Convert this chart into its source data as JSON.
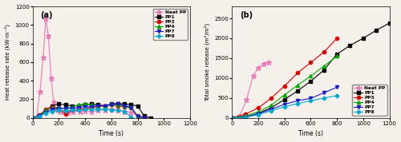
{
  "panel_a": {
    "title": "(a)",
    "xlabel": "Time (s)",
    "ylabel": "Heat release rate (kW·m⁻²)",
    "xlim": [
      0,
      1200
    ],
    "ylim": [
      0,
      1200
    ],
    "yticks": [
      0,
      200,
      400,
      600,
      800,
      1000,
      1200
    ],
    "xticks": [
      0,
      200,
      400,
      600,
      800,
      1000,
      1200
    ],
    "series": {
      "Neat PP": {
        "color": "#e87bb8",
        "marker": "*",
        "markersize": 5,
        "x": [
          0,
          30,
          55,
          80,
          100,
          120,
          140,
          160,
          175,
          190,
          210,
          240,
          270,
          310,
          360,
          400,
          450,
          500,
          550,
          600,
          650,
          700,
          750,
          810,
          860
        ],
        "y": [
          0,
          8,
          280,
          650,
          1070,
          880,
          430,
          170,
          95,
          80,
          70,
          65,
          55,
          70,
          65,
          75,
          65,
          80,
          85,
          90,
          80,
          70,
          60,
          15,
          0
        ]
      },
      "PP1": {
        "color": "#000000",
        "marker": "s",
        "markersize": 3,
        "x": [
          0,
          50,
          100,
          150,
          200,
          250,
          300,
          350,
          400,
          450,
          500,
          550,
          600,
          650,
          700,
          750,
          800,
          850,
          900
        ],
        "y": [
          0,
          20,
          80,
          130,
          150,
          140,
          130,
          130,
          140,
          150,
          140,
          130,
          150,
          155,
          150,
          140,
          130,
          20,
          0
        ]
      },
      "PP3": {
        "color": "#dd0000",
        "marker": "o",
        "markersize": 3,
        "x": [
          0,
          50,
          100,
          150,
          200,
          250,
          300,
          350,
          400,
          450,
          500,
          550,
          600,
          650,
          700,
          750,
          800,
          850
        ],
        "y": [
          0,
          30,
          90,
          120,
          100,
          40,
          80,
          90,
          100,
          110,
          120,
          130,
          140,
          130,
          120,
          110,
          20,
          0
        ]
      },
      "PP4": {
        "color": "#00aa00",
        "marker": "^",
        "markersize": 3,
        "x": [
          0,
          50,
          100,
          150,
          200,
          250,
          300,
          350,
          400,
          450,
          500,
          550,
          600,
          650,
          700,
          750,
          800,
          850
        ],
        "y": [
          0,
          25,
          80,
          110,
          110,
          100,
          120,
          140,
          150,
          140,
          130,
          130,
          150,
          140,
          130,
          120,
          20,
          0
        ]
      },
      "PP7": {
        "color": "#1a1acc",
        "marker": "v",
        "markersize": 3,
        "x": [
          0,
          50,
          100,
          150,
          200,
          250,
          300,
          350,
          400,
          450,
          500,
          550,
          600,
          650,
          700,
          750,
          800,
          850
        ],
        "y": [
          0,
          20,
          60,
          90,
          100,
          100,
          100,
          110,
          120,
          120,
          130,
          130,
          140,
          150,
          130,
          110,
          15,
          0
        ]
      },
      "PP8": {
        "color": "#00aacc",
        "marker": "D",
        "markersize": 2.5,
        "x": [
          0,
          50,
          100,
          150,
          200,
          250,
          300,
          350,
          400,
          450,
          500,
          550,
          600,
          650,
          700,
          750
        ],
        "y": [
          0,
          15,
          50,
          70,
          80,
          75,
          80,
          85,
          90,
          95,
          95,
          90,
          85,
          80,
          70,
          10
        ]
      }
    }
  },
  "panel_b": {
    "title": "(b)",
    "xlabel": "Time (s)",
    "ylabel": "Total smoke release (m²/m²)",
    "xlim": [
      0,
      1200
    ],
    "ylim": [
      0,
      2800
    ],
    "yticks": [
      0,
      500,
      1000,
      1500,
      2000,
      2500
    ],
    "xticks": [
      0,
      200,
      400,
      600,
      800,
      1000,
      1200
    ],
    "series": {
      "Neat PP": {
        "color": "#e87bb8",
        "marker": "*",
        "markersize": 5,
        "x": [
          0,
          60,
          110,
          160,
          200,
          240,
          280
        ],
        "y": [
          0,
          60,
          450,
          1050,
          1260,
          1360,
          1400
        ]
      },
      "PP1": {
        "color": "#000000",
        "marker": "s",
        "markersize": 3,
        "x": [
          0,
          100,
          200,
          300,
          400,
          500,
          600,
          700,
          800,
          900,
          1000,
          1100,
          1200
        ],
        "y": [
          0,
          25,
          110,
          260,
          460,
          680,
          920,
          1200,
          1600,
          1820,
          2000,
          2200,
          2380
        ]
      },
      "PP3": {
        "color": "#dd0000",
        "marker": "o",
        "markersize": 3,
        "x": [
          0,
          100,
          200,
          300,
          400,
          500,
          600,
          700,
          800
        ],
        "y": [
          0,
          90,
          250,
          500,
          800,
          1130,
          1390,
          1650,
          2000
        ]
      },
      "PP4": {
        "color": "#00aa00",
        "marker": "^",
        "markersize": 3,
        "x": [
          0,
          100,
          200,
          300,
          400,
          500,
          600,
          700,
          800
        ],
        "y": [
          0,
          50,
          150,
          320,
          580,
          820,
          1050,
          1300,
          1550
        ]
      },
      "PP7": {
        "color": "#1a1acc",
        "marker": "v",
        "markersize": 3,
        "x": [
          0,
          100,
          200,
          300,
          400,
          500,
          600,
          700,
          800
        ],
        "y": [
          0,
          20,
          100,
          220,
          340,
          430,
          490,
          630,
          770
        ]
      },
      "PP8": {
        "color": "#00aacc",
        "marker": "D",
        "markersize": 2.5,
        "x": [
          0,
          100,
          200,
          300,
          400,
          500,
          600,
          700,
          800
        ],
        "y": [
          0,
          15,
          80,
          180,
          280,
          360,
          430,
          495,
          560
        ]
      }
    }
  },
  "background_color": "#f5f0ea",
  "legend_a_loc": "upper right",
  "legend_b_loc": "lower right"
}
